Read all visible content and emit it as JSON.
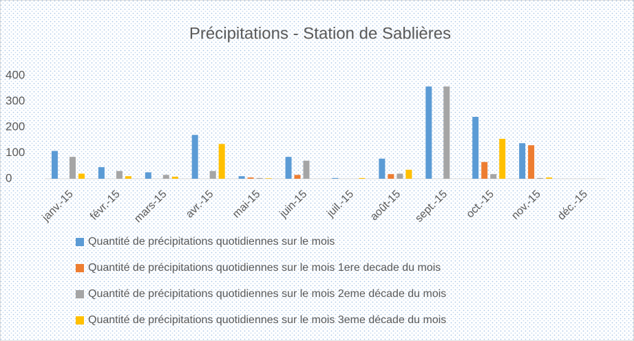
{
  "chart_data": {
    "type": "bar",
    "title": "Précipitations - Station de Sablières",
    "categories": [
      "janv.-15",
      "févr.-15",
      "mars-15",
      "avr.-15",
      "mai-15",
      "juin-15",
      "juil.-15",
      "août-15",
      "sept.-15",
      "oct.-15",
      "nov.-15",
      "déc.-15"
    ],
    "series": [
      {
        "name": "Quantité de précipitations quotidiennes sur le mois",
        "color": "#5b9bd5",
        "values": [
          108,
          45,
          25,
          170,
          10,
          85,
          3,
          78,
          358,
          240,
          138,
          0
        ]
      },
      {
        "name": "Quantité de précipitations quotidiennes sur le mois  1ere decade du mois",
        "color": "#ed7d31",
        "values": [
          0,
          0,
          0,
          0,
          5,
          15,
          0,
          18,
          0,
          65,
          130,
          0
        ]
      },
      {
        "name": "Quantité de précipitations quotidiennes sur le mois 2eme décade du mois",
        "color": "#a5a5a5",
        "values": [
          85,
          30,
          15,
          30,
          3,
          70,
          0,
          20,
          358,
          18,
          3,
          0
        ]
      },
      {
        "name": "Quantité de précipitations quotidiennes sur le mois 3eme décade du mois",
        "color": "#ffc000",
        "values": [
          20,
          10,
          8,
          135,
          2,
          0,
          3,
          35,
          0,
          155,
          5,
          0
        ]
      }
    ],
    "ylim": [
      0,
      400
    ],
    "yticks": [
      0,
      100,
      200,
      300,
      400
    ],
    "grid": false,
    "legend": "bottom"
  }
}
